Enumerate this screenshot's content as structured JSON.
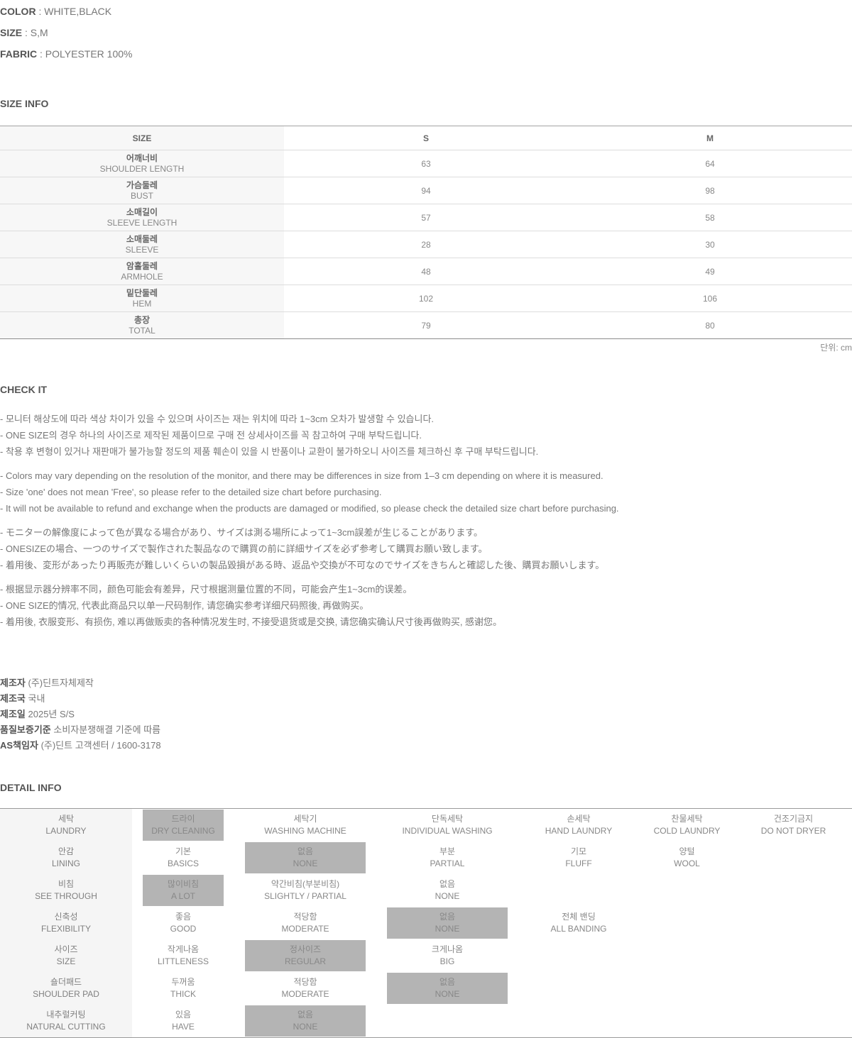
{
  "separator": " : ",
  "specs": [
    {
      "label": "COLOR",
      "value": "WHITE,BLACK"
    },
    {
      "label": "SIZE",
      "value": "S,M"
    },
    {
      "label": "FABRIC",
      "value": "POLYESTER 100%"
    }
  ],
  "size_info": {
    "heading": "SIZE INFO",
    "columns": [
      "SIZE",
      "S",
      "M"
    ],
    "rows": [
      {
        "ko": "어깨너비",
        "en": "SHOULDER LENGTH",
        "s": "63",
        "m": "64"
      },
      {
        "ko": "가슴둘레",
        "en": "BUST",
        "s": "94",
        "m": "98"
      },
      {
        "ko": "소매길이",
        "en": "SLEEVE LENGTH",
        "s": "57",
        "m": "58"
      },
      {
        "ko": "소매둘레",
        "en": "SLEEVE",
        "s": "28",
        "m": "30"
      },
      {
        "ko": "암홀둘레",
        "en": "ARMHOLE",
        "s": "48",
        "m": "49"
      },
      {
        "ko": "밑단둘레",
        "en": "HEM",
        "s": "102",
        "m": "106"
      },
      {
        "ko": "총장",
        "en": "TOTAL",
        "s": "79",
        "m": "80"
      }
    ],
    "unit": "단위: cm"
  },
  "check_it": {
    "heading": "CHECK IT",
    "blocks": [
      {
        "lang": "korean",
        "lines": [
          "- 모니터 해상도에 따라 색상 차이가 있을 수 있으며 사이즈는 재는 위치에 따라 1~3cm 오차가 발생할 수 있습니다.",
          "- ONE SIZE의 경우 하나의 사이즈로 제작된 제품이므로 구매 전 상세사이즈를 꼭 참고하여 구매 부탁드립니다.",
          "- 착용 후 변형이 있거나 재판매가 불가능할 정도의 제품 훼손이 있을 시 반품이나 교환이 불가하오니 사이즈를 체크하신 후 구매 부탁드립니다."
        ]
      },
      {
        "lang": "english",
        "lines": [
          "- Colors may vary depending on the resolution of the monitor, and there may be differences in size from 1–3 cm depending on where it is measured.",
          "- Size 'one' does not mean 'Free', so please refer to the detailed size chart before purchasing.",
          "- It will not be available to refund and exchange when the products are damaged or modified, so please check the detailed size chart before purchasing."
        ]
      },
      {
        "lang": "japanese",
        "lines": [
          "- モニターの解像度によって色が異なる場合があり、サイズは測る場所によって1~3cm誤差が生じることがあります。",
          "- ONESIZEの場合、一つのサイズで製作された製品なので購買の前に詳細サイズを必ず参考して購買お願い致します。",
          "- 着用後、変形があったり再販売が難しいくらいの製品毀損がある時、返品や交換が不可なのでサイズをきちんと確認した後、購買お願いします。"
        ]
      },
      {
        "lang": "chinese",
        "lines": [
          "- 根据显示器分辨率不同，颜色可能会有差异，尺寸根据测量位置的不同，可能会产生1~3cm的误差。",
          "- ONE SIZE的情况, 代表此商品只以单一尺码制作, 请您确实参考详细尺码照後, 再做购买。",
          "- 着用後, 衣服变形、有损伤, 难以再做贩卖的各种情况发生时, 不接受退货或是交换, 请您确实确认尺寸後再做购买, 感谢您。"
        ]
      }
    ]
  },
  "manufacturer": [
    {
      "label": "제조자",
      "value": "(주)딘트자체제작"
    },
    {
      "label": "제조국",
      "value": "국내"
    },
    {
      "label": "제조일",
      "value": "2025년 S/S"
    },
    {
      "label": "품질보증기준",
      "value": "소비자분쟁해결 기준에 따름"
    },
    {
      "label": "AS책임자",
      "value": "(주)딘트 고객센터 / 1600-3178"
    }
  ],
  "detail_info": {
    "heading": "DETAIL INFO",
    "highlight_color": "#b4b4b4",
    "rows": [
      {
        "label": {
          "ko": "세탁",
          "en": "LAUNDRY"
        },
        "cells": [
          {
            "ko": "드라이",
            "en": "DRY CLEANING",
            "active": true
          },
          {
            "ko": "세탁기",
            "en": "WASHING MACHINE",
            "active": false
          },
          {
            "ko": "단독세탁",
            "en": "INDIVIDUAL WASHING",
            "active": false
          },
          {
            "ko": "손세탁",
            "en": "HAND LAUNDRY",
            "active": false
          },
          {
            "ko": "찬물세탁",
            "en": "COLD LAUNDRY",
            "active": false
          },
          {
            "ko": "건조기금지",
            "en": "DO NOT DRYER",
            "active": false
          }
        ]
      },
      {
        "label": {
          "ko": "안감",
          "en": "LINING"
        },
        "cells": [
          {
            "ko": "기본",
            "en": "BASICS",
            "active": false
          },
          {
            "ko": "없음",
            "en": "NONE",
            "active": true
          },
          {
            "ko": "부분",
            "en": "PARTIAL",
            "active": false
          },
          {
            "ko": "기모",
            "en": "FLUFF",
            "active": false
          },
          {
            "ko": "양털",
            "en": "WOOL",
            "active": false
          },
          null
        ]
      },
      {
        "label": {
          "ko": "비침",
          "en": "SEE THROUGH"
        },
        "cells": [
          {
            "ko": "많이비침",
            "en": "A LOT",
            "active": true
          },
          {
            "ko": "약간비침(부분비침)",
            "en": "SLIGHTLY / PARTIAL",
            "active": false
          },
          {
            "ko": "없음",
            "en": "NONE",
            "active": false
          },
          null,
          null,
          null
        ]
      },
      {
        "label": {
          "ko": "신축성",
          "en": "FLEXIBILITY"
        },
        "cells": [
          {
            "ko": "좋음",
            "en": "GOOD",
            "active": false
          },
          {
            "ko": "적당함",
            "en": "MODERATE",
            "active": false
          },
          {
            "ko": "없음",
            "en": "NONE",
            "active": true
          },
          {
            "ko": "전체 밴딩",
            "en": "ALL BANDING",
            "active": false
          },
          null,
          null
        ]
      },
      {
        "label": {
          "ko": "사이즈",
          "en": "SIZE"
        },
        "cells": [
          {
            "ko": "작게나옴",
            "en": "LITTLENESS",
            "active": false
          },
          {
            "ko": "정사이즈",
            "en": "REGULAR",
            "active": true
          },
          {
            "ko": "크게나옴",
            "en": "BIG",
            "active": false
          },
          null,
          null,
          null
        ]
      },
      {
        "label": {
          "ko": "숄더패드",
          "en": "SHOULDER PAD"
        },
        "cells": [
          {
            "ko": "두꺼움",
            "en": "THICK",
            "active": false
          },
          {
            "ko": "적당함",
            "en": "MODERATE",
            "active": false
          },
          {
            "ko": "없음",
            "en": "NONE",
            "active": true
          },
          null,
          null,
          null
        ]
      },
      {
        "label": {
          "ko": "내추럴커팅",
          "en": "NATURAL CUTTING"
        },
        "cells": [
          {
            "ko": "있음",
            "en": "HAVE",
            "active": false
          },
          {
            "ko": "없음",
            "en": "NONE",
            "active": true
          },
          null,
          null,
          null,
          null
        ]
      }
    ]
  }
}
